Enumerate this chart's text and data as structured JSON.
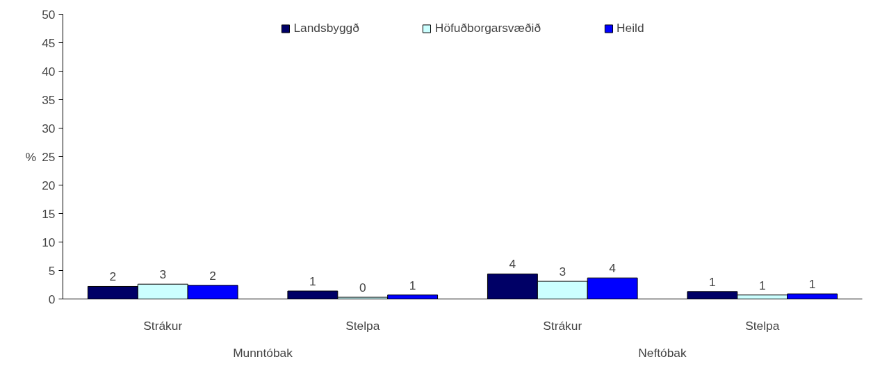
{
  "chart_data": {
    "type": "bar",
    "ylabel": "%",
    "categories": [
      "Strákur",
      "Stelpa",
      "Strákur",
      "Stelpa"
    ],
    "annotations": [
      "Munntóbak",
      "Neftóbak"
    ],
    "series": [
      {
        "name": "Landsbyggð",
        "color": "#000066",
        "values": [
          2.2,
          1.4,
          4.4,
          1.3
        ],
        "value_labels": [
          "2",
          "1",
          "4",
          "1"
        ]
      },
      {
        "name": "Höfuðborgarsvæðið",
        "color": "#ccffff",
        "values": [
          2.6,
          0.3,
          3.1,
          0.7
        ],
        "value_labels": [
          "3",
          "0",
          "3",
          "1"
        ]
      },
      {
        "name": "Heild",
        "color": "#0000ff",
        "values": [
          2.4,
          0.7,
          3.7,
          0.9
        ],
        "value_labels": [
          "2",
          "1",
          "4",
          "1"
        ]
      }
    ],
    "ylim": [
      0,
      50
    ],
    "yticks": [
      0,
      5,
      10,
      15,
      20,
      25,
      30,
      35,
      40,
      45,
      50
    ],
    "grid": false,
    "legend": "top"
  }
}
